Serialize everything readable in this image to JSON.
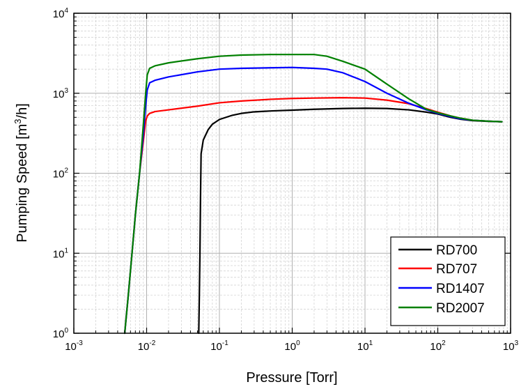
{
  "chart_data": {
    "type": "line",
    "title": "",
    "xlabel": "Pressure [Torr]",
    "ylabel_prefix": "Pumping Speed [m",
    "ylabel_sup": "3",
    "ylabel_suffix": "/h]",
    "xscale": "log",
    "yscale": "log",
    "xlim": [
      0.001,
      1000
    ],
    "ylim": [
      1,
      10000
    ],
    "grid": true,
    "legend_position": "bottom-right",
    "x_ticks": [
      {
        "base": "10",
        "exp": "-3"
      },
      {
        "base": "10",
        "exp": "-2"
      },
      {
        "base": "10",
        "exp": "-1"
      },
      {
        "base": "10",
        "exp": "0"
      },
      {
        "base": "10",
        "exp": "1"
      },
      {
        "base": "10",
        "exp": "2"
      },
      {
        "base": "10",
        "exp": "3"
      }
    ],
    "y_ticks": [
      {
        "base": "10",
        "exp": "0"
      },
      {
        "base": "10",
        "exp": "1"
      },
      {
        "base": "10",
        "exp": "2"
      },
      {
        "base": "10",
        "exp": "3"
      },
      {
        "base": "10",
        "exp": "4"
      }
    ],
    "series": [
      {
        "name": "RD700",
        "color": "#000000",
        "points": [
          [
            0.052,
            1
          ],
          [
            0.053,
            3
          ],
          [
            0.054,
            10
          ],
          [
            0.055,
            50
          ],
          [
            0.056,
            175
          ],
          [
            0.06,
            260
          ],
          [
            0.07,
            350
          ],
          [
            0.08,
            410
          ],
          [
            0.1,
            470
          ],
          [
            0.15,
            530
          ],
          [
            0.2,
            560
          ],
          [
            0.3,
            585
          ],
          [
            0.5,
            600
          ],
          [
            1,
            615
          ],
          [
            2,
            630
          ],
          [
            5,
            645
          ],
          [
            10,
            650
          ],
          [
            20,
            645
          ],
          [
            40,
            620
          ],
          [
            70,
            580
          ],
          [
            100,
            550
          ],
          [
            150,
            500
          ],
          [
            200,
            475
          ],
          [
            300,
            455
          ],
          [
            500,
            445
          ],
          [
            760,
            440
          ]
        ]
      },
      {
        "name": "RD707",
        "color": "#ff0000",
        "points": [
          [
            0.005,
            1
          ],
          [
            0.0056,
            3
          ],
          [
            0.0063,
            10
          ],
          [
            0.007,
            30
          ],
          [
            0.008,
            100
          ],
          [
            0.009,
            250
          ],
          [
            0.0097,
            450
          ],
          [
            0.0102,
            520
          ],
          [
            0.011,
            560
          ],
          [
            0.013,
            590
          ],
          [
            0.02,
            620
          ],
          [
            0.05,
            690
          ],
          [
            0.1,
            760
          ],
          [
            0.2,
            800
          ],
          [
            0.5,
            840
          ],
          [
            1,
            860
          ],
          [
            2,
            870
          ],
          [
            5,
            880
          ],
          [
            10,
            870
          ],
          [
            20,
            820
          ],
          [
            40,
            740
          ],
          [
            70,
            640
          ],
          [
            100,
            580
          ],
          [
            150,
            520
          ],
          [
            200,
            490
          ],
          [
            300,
            460
          ],
          [
            500,
            447
          ],
          [
            760,
            440
          ]
        ]
      },
      {
        "name": "RD1407",
        "color": "#0000ff",
        "points": [
          [
            0.005,
            1
          ],
          [
            0.0056,
            3
          ],
          [
            0.0063,
            10
          ],
          [
            0.007,
            30
          ],
          [
            0.008,
            100
          ],
          [
            0.009,
            300
          ],
          [
            0.0097,
            700
          ],
          [
            0.0102,
            1100
          ],
          [
            0.011,
            1350
          ],
          [
            0.013,
            1450
          ],
          [
            0.02,
            1600
          ],
          [
            0.05,
            1850
          ],
          [
            0.1,
            2000
          ],
          [
            0.2,
            2050
          ],
          [
            0.5,
            2080
          ],
          [
            1,
            2100
          ],
          [
            2,
            2050
          ],
          [
            3,
            2000
          ],
          [
            5,
            1800
          ],
          [
            10,
            1400
          ],
          [
            20,
            1000
          ],
          [
            40,
            750
          ],
          [
            70,
            620
          ],
          [
            100,
            560
          ],
          [
            150,
            510
          ],
          [
            200,
            480
          ],
          [
            300,
            460
          ],
          [
            500,
            447
          ],
          [
            760,
            440
          ]
        ]
      },
      {
        "name": "RD2007",
        "color": "#008000",
        "points": [
          [
            0.005,
            1
          ],
          [
            0.0056,
            3
          ],
          [
            0.0063,
            10
          ],
          [
            0.007,
            30
          ],
          [
            0.008,
            100
          ],
          [
            0.009,
            400
          ],
          [
            0.0097,
            1000
          ],
          [
            0.0102,
            1700
          ],
          [
            0.011,
            2050
          ],
          [
            0.013,
            2200
          ],
          [
            0.02,
            2400
          ],
          [
            0.05,
            2700
          ],
          [
            0.1,
            2900
          ],
          [
            0.2,
            3000
          ],
          [
            0.5,
            3050
          ],
          [
            1,
            3050
          ],
          [
            2,
            3050
          ],
          [
            3,
            2900
          ],
          [
            5,
            2500
          ],
          [
            10,
            2000
          ],
          [
            20,
            1300
          ],
          [
            40,
            850
          ],
          [
            70,
            630
          ],
          [
            100,
            570
          ],
          [
            150,
            520
          ],
          [
            200,
            490
          ],
          [
            300,
            460
          ],
          [
            500,
            447
          ],
          [
            760,
            440
          ]
        ]
      }
    ]
  }
}
